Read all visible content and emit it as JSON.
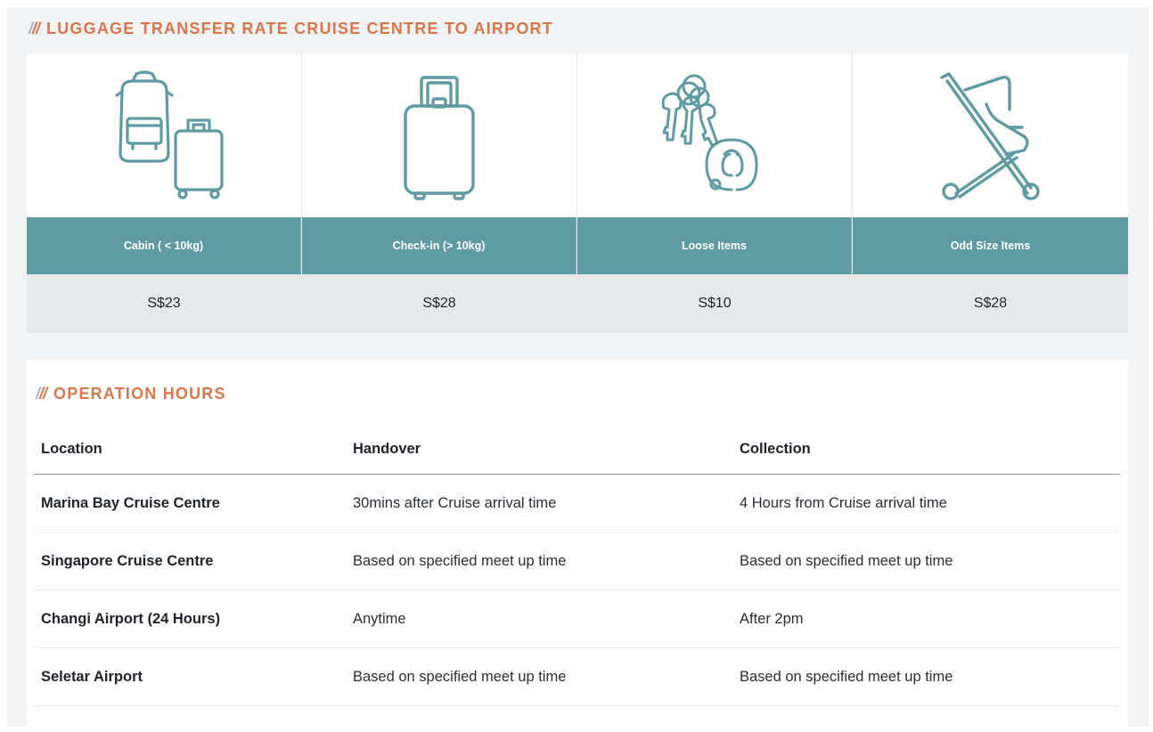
{
  "rates": {
    "heading": "LUGGAGE TRANSFER RATE CRUISE CENTRE TO AIRPORT",
    "items": [
      {
        "icon": "backpack-and-cabin-suitcase-icon",
        "label": "Cabin ( < 10kg)",
        "price": "S$23"
      },
      {
        "icon": "check-in-suitcase-icon",
        "label": "Check-in (> 10kg)",
        "price": "S$28"
      },
      {
        "icon": "keys-and-neck-pillow-icon",
        "label": "Loose Items",
        "price": "S$10"
      },
      {
        "icon": "stroller-icon",
        "label": "Odd Size Items",
        "price": "S$28"
      }
    ]
  },
  "operation_hours": {
    "heading": "OPERATION HOURS",
    "columns": [
      "Location",
      "Handover",
      "Collection"
    ],
    "rows": [
      {
        "location": "Marina Bay Cruise Centre",
        "handover": "30mins after Cruise arrival time",
        "collection": "4 Hours from Cruise arrival time"
      },
      {
        "location": "Singapore Cruise Centre",
        "handover": "Based on specified meet up time",
        "collection": "Based on specified meet up time"
      },
      {
        "location": "Changi Airport (24 Hours)",
        "handover": "Anytime",
        "collection": "After 2pm"
      },
      {
        "location": "Seletar Airport",
        "handover": "Based on specified meet up time",
        "collection": "Based on specified meet up time"
      }
    ]
  },
  "colors": {
    "accent_orange": "#d9764a",
    "teal": "#5e9ba3",
    "icon_stroke": "#5e9ba3",
    "slash_grey": "#aab6bd"
  }
}
